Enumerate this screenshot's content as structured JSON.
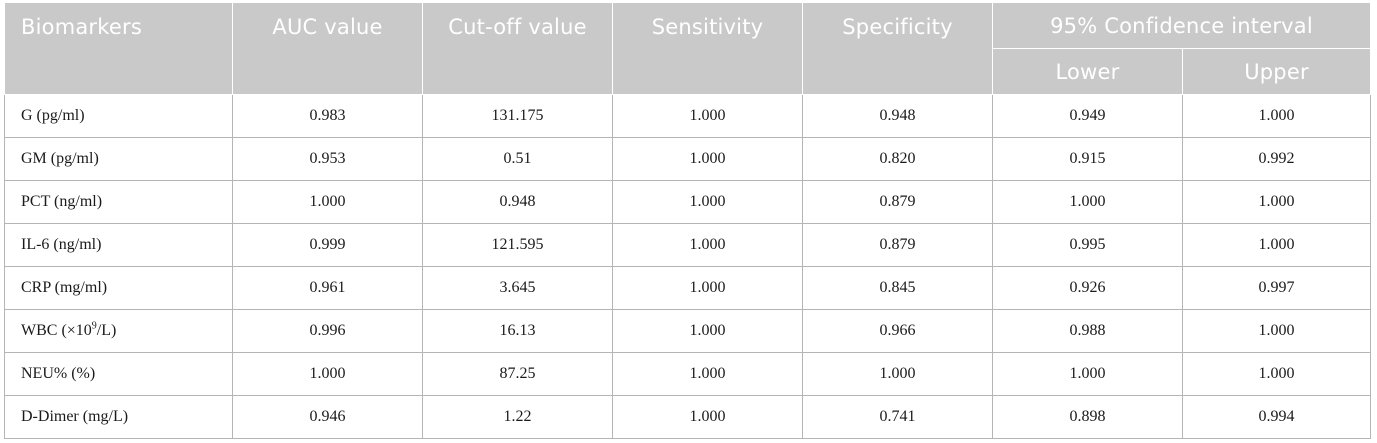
{
  "table": {
    "headers": {
      "biomarkers": "Biomarkers",
      "auc": "AUC value",
      "cutoff": "Cut-off value",
      "sensitivity": "Sensitivity",
      "specificity": "Specificity",
      "ci": "95% Confidence interval",
      "lower": "Lower",
      "upper": "Upper"
    },
    "rows": [
      {
        "name": "G (pg/ml)",
        "auc": "0.983",
        "cutoff": "131.175",
        "sensitivity": "1.000",
        "specificity": "0.948",
        "lower": "0.949",
        "upper": "1.000"
      },
      {
        "name": "GM (pg/ml)",
        "auc": "0.953",
        "cutoff": "0.51",
        "sensitivity": "1.000",
        "specificity": "0.820",
        "lower": "0.915",
        "upper": "0.992"
      },
      {
        "name": "PCT (ng/ml)",
        "auc": "1.000",
        "cutoff": "0.948",
        "sensitivity": "1.000",
        "specificity": "0.879",
        "lower": "1.000",
        "upper": "1.000"
      },
      {
        "name": "IL-6 (ng/ml)",
        "auc": "0.999",
        "cutoff": "121.595",
        "sensitivity": "1.000",
        "specificity": "0.879",
        "lower": "0.995",
        "upper": "1.000"
      },
      {
        "name": "CRP (mg/ml)",
        "auc": "0.961",
        "cutoff": "3.645",
        "sensitivity": "1.000",
        "specificity": "0.845",
        "lower": "0.926",
        "upper": "0.997"
      },
      {
        "name_prefix": "WBC (×10",
        "name_sup": "9",
        "name_suffix": "/L)",
        "auc": "0.996",
        "cutoff": "16.13",
        "sensitivity": "1.000",
        "specificity": "0.966",
        "lower": "0.988",
        "upper": "1.000"
      },
      {
        "name": "NEU% (%)",
        "auc": "1.000",
        "cutoff": "87.25",
        "sensitivity": "1.000",
        "specificity": "1.000",
        "lower": "1.000",
        "upper": "1.000"
      },
      {
        "name": "D-Dimer (mg/L)",
        "auc": "0.946",
        "cutoff": "1.22",
        "sensitivity": "1.000",
        "specificity": "0.741",
        "lower": "0.898",
        "upper": "0.994"
      }
    ]
  }
}
